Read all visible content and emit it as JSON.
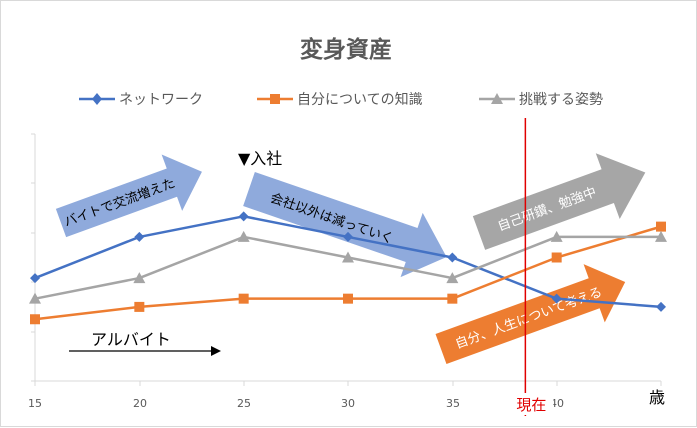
{
  "chart_data": {
    "type": "line",
    "title": "変身資産",
    "x": [
      15,
      20,
      25,
      30,
      35,
      40,
      45
    ],
    "xticks": [
      "15",
      "20",
      "25",
      "30",
      "35",
      "40"
    ],
    "xlim": [
      15,
      45
    ],
    "ylim": [
      0,
      6
    ],
    "xlabel": "歳",
    "ylabel": "",
    "grid": false,
    "legend_position": "top",
    "series": [
      {
        "name": "ネットワーク",
        "color": "#4472c4",
        "marker": "diamond",
        "values": [
          2.5,
          3.5,
          4.0,
          3.5,
          3.0,
          2.0,
          1.8
        ]
      },
      {
        "name": "自分についての知識",
        "color": "#ed7d31",
        "marker": "square",
        "values": [
          1.5,
          1.8,
          2.0,
          2.0,
          2.0,
          3.0,
          3.75
        ]
      },
      {
        "name": "挑戦する姿勢",
        "color": "#a5a5a5",
        "marker": "triangle",
        "values": [
          2.0,
          2.5,
          3.5,
          3.0,
          2.5,
          3.5,
          3.5
        ]
      }
    ],
    "annotations": {
      "join": "▼入社",
      "arubaito_label": "アルバイト",
      "arrow1": "バイトで交流増えた",
      "arrow2": "会社以外は減っていく",
      "arrow3": "自己研鑽、勉強中",
      "arrow4": "自分、人生について考える",
      "now_label": "現在",
      "now_x": 38.5
    },
    "colors": {
      "arrow_blue": "#8faadc",
      "arrow_gray": "#a6a6a6",
      "arrow_orange": "#ed7d31",
      "now_line": "#e00000",
      "axis": "#d9d9d9"
    }
  }
}
